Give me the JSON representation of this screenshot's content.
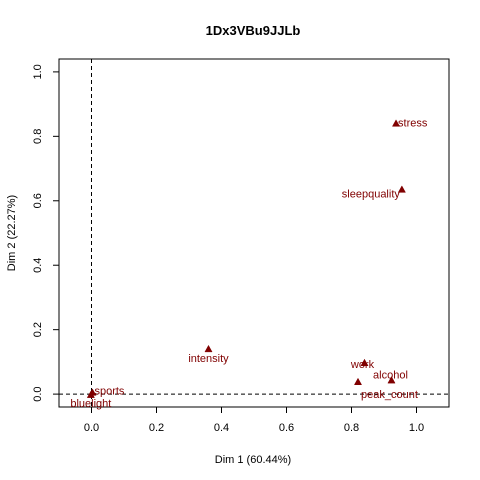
{
  "chart_data": {
    "type": "scatter",
    "title": "1Dx3VBu9JJLb",
    "xlabel": "Dim 1 (60.44%)",
    "ylabel": "Dim 2 (22.27%)",
    "xlim": [
      -0.1,
      1.1
    ],
    "ylim": [
      -0.04,
      1.04
    ],
    "x_ticks": [
      "0.0",
      "0.2",
      "0.4",
      "0.6",
      "0.8",
      "1.0"
    ],
    "y_ticks": [
      "0.0",
      "0.2",
      "0.4",
      "0.6",
      "0.8",
      "1.0"
    ],
    "reference_lines": {
      "x": 0,
      "y": 0,
      "style": "dashed"
    },
    "marker": "filled-triangle",
    "point_color": "#800000",
    "points": [
      {
        "label": "stress",
        "x": 0.937,
        "y": 0.84
      },
      {
        "label": "sleepquality",
        "x": 0.955,
        "y": 0.635
      },
      {
        "label": "intensity",
        "x": 0.36,
        "y": 0.14
      },
      {
        "label": "work",
        "x": 0.84,
        "y": 0.097
      },
      {
        "label": "alcohol",
        "x": 0.923,
        "y": 0.043
      },
      {
        "label": "peak_count",
        "x": 0.82,
        "y": 0.038
      },
      {
        "label": "sports",
        "x": 0.003,
        "y": 0.005
      },
      {
        "label": "bluelight",
        "x": -0.002,
        "y": -0.002
      }
    ]
  }
}
